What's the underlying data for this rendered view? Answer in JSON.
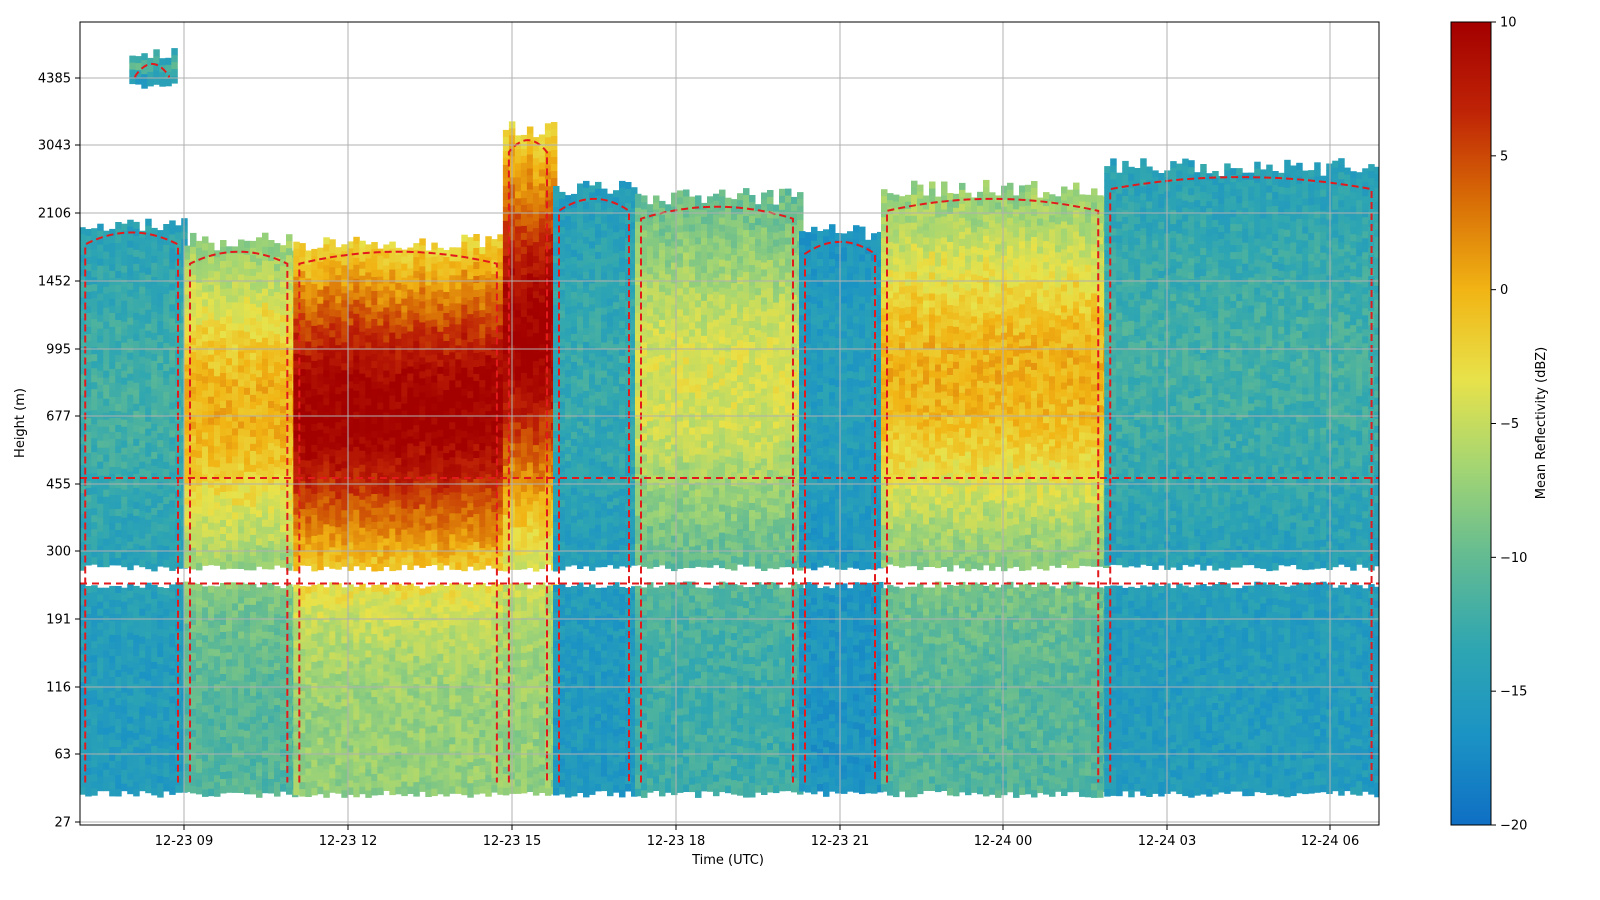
{
  "chart_data": {
    "type": "heatmap",
    "title": "",
    "xlabel": "Time (UTC)",
    "ylabel": "Height (m)",
    "x_ticks": [
      "12-23 09",
      "12-23 12",
      "12-23 15",
      "12-23 18",
      "12-23 21",
      "12-24 00",
      "12-24 03",
      "12-24 06"
    ],
    "y_ticks": [
      "27",
      "63",
      "116",
      "191",
      "300",
      "455",
      "677",
      "995",
      "1452",
      "2106",
      "3043",
      "4385"
    ],
    "x_range": [
      "12-23 07:05",
      "12-24 06:50"
    ],
    "grid": true,
    "colorbar": {
      "label": "Mean Reflectivity (dBZ)",
      "range": [
        -20,
        10
      ],
      "ticks": [
        "10",
        "5",
        "0",
        "−5",
        "−10",
        "−15",
        "−20"
      ],
      "colormap": [
        "#0f6fc4",
        "#1b93c4",
        "#2fa6b1",
        "#63bb92",
        "#a3d573",
        "#e8e24a",
        "#f1b414",
        "#d86d06",
        "#bf2306",
        "#a30000"
      ]
    },
    "contour": {
      "color": "#e31a1c",
      "style": "dashed",
      "level_dBZ": -15
    },
    "dbz_summary": [
      {
        "time_start": "12-23 07:05",
        "time_end": "12-23 09:00",
        "max_height_m": 2000,
        "peak_dBZ": -12
      },
      {
        "time_start": "12-23 08:00",
        "time_end": "12-23 08:50",
        "max_height_m": 5000,
        "peak_dBZ": -11,
        "note_height_min_m": 4300
      },
      {
        "time_start": "12-23 09:00",
        "time_end": "12-23 11:00",
        "max_height_m": 1800,
        "peak_dBZ": 0
      },
      {
        "time_start": "12-23 11:00",
        "time_end": "12-23 14:50",
        "max_height_m": 1800,
        "peak_dBZ": 10
      },
      {
        "time_start": "12-23 14:50",
        "time_end": "12-23 15:45",
        "max_height_m": 3300,
        "peak_dBZ": 10
      },
      {
        "time_start": "12-23 15:45",
        "time_end": "12-23 17:15",
        "max_height_m": 2400,
        "peak_dBZ": -13
      },
      {
        "time_start": "12-23 17:15",
        "time_end": "12-23 20:15",
        "max_height_m": 2300,
        "peak_dBZ": -4
      },
      {
        "time_start": "12-23 20:15",
        "time_end": "12-23 21:45",
        "max_height_m": 1900,
        "peak_dBZ": -15
      },
      {
        "time_start": "12-23 21:45",
        "time_end": "12-24 01:50",
        "max_height_m": 2400,
        "peak_dBZ": 0
      },
      {
        "time_start": "12-24 01:50",
        "time_end": "12-24 06:50",
        "max_height_m": 2700,
        "peak_dBZ": -12
      }
    ],
    "missing_data_band_m": [
      245,
      275
    ]
  }
}
